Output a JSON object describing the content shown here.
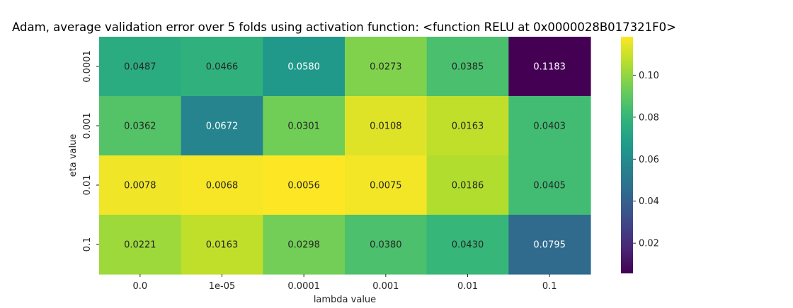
{
  "chart_data": {
    "type": "heatmap",
    "title": "Adam, average validation error over 5 folds using activation function: <function RELU at 0x0000028B017321F0>",
    "xlabel": "lambda value",
    "ylabel": "eta value",
    "x_categories": [
      "0.0",
      "1e-05",
      "0.0001",
      "0.001",
      "0.01",
      "0.1"
    ],
    "y_categories": [
      "0.0001",
      "0.001",
      "0.01",
      "0.1"
    ],
    "values": [
      [
        0.0487,
        0.0466,
        0.058,
        0.0273,
        0.0385,
        0.1183
      ],
      [
        0.0362,
        0.0672,
        0.0301,
        0.0108,
        0.0163,
        0.0403
      ],
      [
        0.0078,
        0.0068,
        0.0056,
        0.0075,
        0.0186,
        0.0405
      ],
      [
        0.0221,
        0.0163,
        0.0298,
        0.038,
        0.043,
        0.0795
      ]
    ],
    "value_labels": [
      [
        "0.0487",
        "0.0466",
        "0.0580",
        "0.0273",
        "0.0385",
        "0.1183"
      ],
      [
        "0.0362",
        "0.0672",
        "0.0301",
        "0.0108",
        "0.0163",
        "0.0403"
      ],
      [
        "0.0078",
        "0.0068",
        "0.0056",
        "0.0075",
        "0.0186",
        "0.0405"
      ],
      [
        "0.0221",
        "0.0163",
        "0.0298",
        "0.0380",
        "0.0430",
        "0.0795"
      ]
    ],
    "colormap": "viridis_r",
    "color_range": [
      0.0056,
      0.1183
    ],
    "colorbar_ticks": [
      0.02,
      0.04,
      0.06,
      0.08,
      0.1
    ],
    "colorbar_tick_labels": [
      "0.02",
      "0.04",
      "0.06",
      "0.08",
      "0.10"
    ],
    "grid": false,
    "legend": "colorbar-right"
  }
}
